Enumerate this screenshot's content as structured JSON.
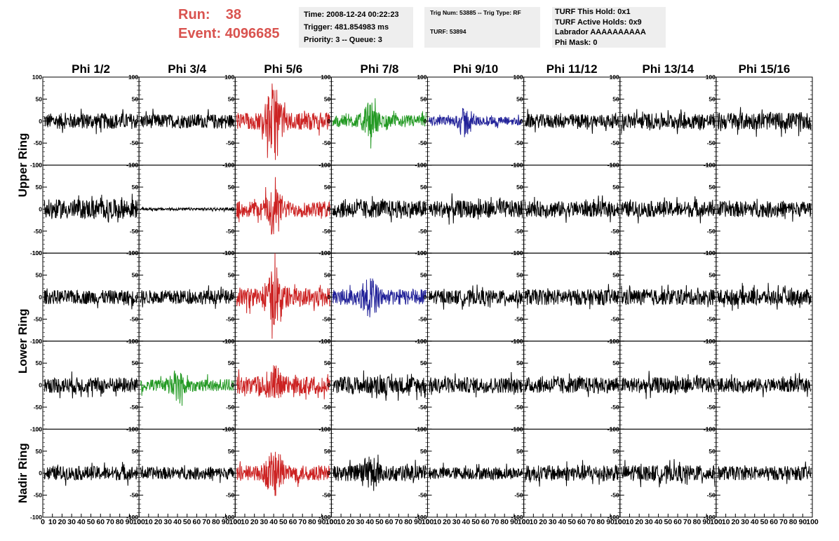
{
  "header": {
    "run_label": "Run:",
    "run_value": "38",
    "event_label": "Event:",
    "event_value": "4096685",
    "box1": [
      "Time: 2008-12-24 00:22:23",
      "Trigger: 481.854983 ms",
      "Priority: 3 -- Queue: 3"
    ],
    "box2": [
      "Trig Num: 53885 -- Trig Type: RF",
      "TURF: 53894"
    ],
    "box3": [
      "TURF This Hold: 0x1",
      "TURF Active Holds: 0x9",
      "Labrador AAAAAAAAAA",
      "Phi Mask: 0"
    ]
  },
  "chart_data": {
    "type": "line",
    "columns": [
      "Phi 1/2",
      "Phi 3/4",
      "Phi 5/6",
      "Phi 7/8",
      "Phi 9/10",
      "Phi 11/12",
      "Phi 13/14",
      "Phi 15/16"
    ],
    "ring_labels": [
      "Upper Ring",
      "Lower Ring",
      "Nadir Ring"
    ],
    "ylim": [
      -100,
      100
    ],
    "xlim": [
      0,
      100
    ],
    "y_ticks": [
      "100",
      "50",
      "0",
      "-50",
      "-100"
    ],
    "x_ticks": [
      "0",
      "10",
      "20",
      "30",
      "40",
      "50",
      "60",
      "70",
      "80",
      "90",
      "100"
    ],
    "colors": {
      "default": "#000000",
      "red": "#cc2222",
      "green": "#229922",
      "blue": "#222299"
    },
    "panels": [
      [
        {
          "color": "default",
          "amp": 18,
          "burst": 0
        },
        {
          "color": "default",
          "amp": 16,
          "burst": 0
        },
        {
          "color": "red",
          "amp": 20,
          "burst": 90
        },
        {
          "color": "green",
          "amp": 14,
          "burst": 35
        },
        {
          "color": "blue",
          "amp": 10,
          "burst": 30
        },
        {
          "color": "default",
          "amp": 16,
          "burst": 0
        },
        {
          "color": "default",
          "amp": 18,
          "burst": 0
        },
        {
          "color": "default",
          "amp": 20,
          "burst": 0
        }
      ],
      [
        {
          "color": "default",
          "amp": 22,
          "burst": 0
        },
        {
          "color": "default",
          "amp": 3,
          "burst": 0
        },
        {
          "color": "red",
          "amp": 18,
          "burst": 55
        },
        {
          "color": "default",
          "amp": 20,
          "burst": 0
        },
        {
          "color": "default",
          "amp": 20,
          "burst": 0
        },
        {
          "color": "default",
          "amp": 18,
          "burst": 0
        },
        {
          "color": "default",
          "amp": 18,
          "burst": 0
        },
        {
          "color": "default",
          "amp": 18,
          "burst": 0
        }
      ],
      [
        {
          "color": "default",
          "amp": 16,
          "burst": 0
        },
        {
          "color": "default",
          "amp": 16,
          "burst": 0
        },
        {
          "color": "red",
          "amp": 22,
          "burst": 55
        },
        {
          "color": "blue",
          "amp": 18,
          "burst": 45
        },
        {
          "color": "default",
          "amp": 16,
          "burst": 0
        },
        {
          "color": "default",
          "amp": 18,
          "burst": 0
        },
        {
          "color": "default",
          "amp": 18,
          "burst": 0
        },
        {
          "color": "default",
          "amp": 18,
          "burst": 0
        }
      ],
      [
        {
          "color": "default",
          "amp": 18,
          "burst": 0
        },
        {
          "color": "green",
          "amp": 14,
          "burst": 30
        },
        {
          "color": "red",
          "amp": 20,
          "burst": 35
        },
        {
          "color": "default",
          "amp": 20,
          "burst": 0
        },
        {
          "color": "default",
          "amp": 18,
          "burst": 0
        },
        {
          "color": "default",
          "amp": 18,
          "burst": 0
        },
        {
          "color": "default",
          "amp": 18,
          "burst": 0
        },
        {
          "color": "default",
          "amp": 16,
          "burst": 0
        }
      ],
      [
        {
          "color": "default",
          "amp": 16,
          "burst": 0
        },
        {
          "color": "default",
          "amp": 14,
          "burst": 0
        },
        {
          "color": "red",
          "amp": 18,
          "burst": 60
        },
        {
          "color": "default",
          "amp": 18,
          "burst": 40
        },
        {
          "color": "default",
          "amp": 14,
          "burst": 0
        },
        {
          "color": "default",
          "amp": 18,
          "burst": 0
        },
        {
          "color": "default",
          "amp": 18,
          "burst": 0
        },
        {
          "color": "default",
          "amp": 16,
          "burst": 0
        }
      ]
    ]
  }
}
